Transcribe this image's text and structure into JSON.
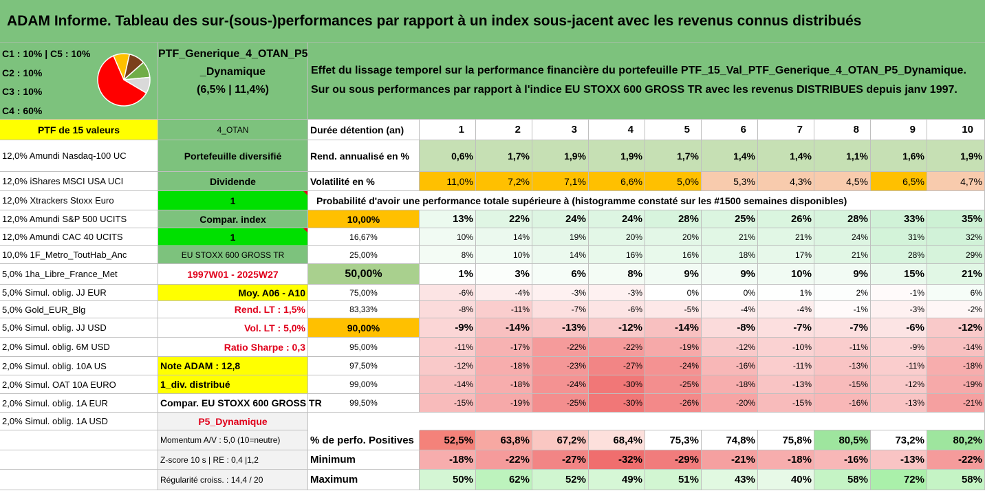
{
  "title": "ADAM Informe. Tableau des sur-(sous-)performances par rapport à un index sous-jacent avec les revenus connus distribués",
  "legend": {
    "lines": [
      "C1 : 10% | C5 : 10%",
      "C2 : 10%",
      "C3 : 10%",
      "C4 : 60%"
    ],
    "slices": [
      {
        "label": "C1",
        "pct": 10,
        "color": "#ffc000"
      },
      {
        "label": "C5",
        "pct": 10,
        "color": "#7b3f1a"
      },
      {
        "label": "C2",
        "pct": 10,
        "color": "#70ad47"
      },
      {
        "label": "C3",
        "pct": 10,
        "color": "#d9d9d9"
      },
      {
        "label": "C4",
        "pct": 60,
        "color": "#ff0000"
      }
    ]
  },
  "portfolio": {
    "name_line1": "PTF_Generique_4_OTAN_P5",
    "name_line2": "_Dynamique",
    "name_line3": "(6,5% | 11,4%)"
  },
  "description": "Effet du lissage temporel sur la performance financière du portefeuille PTF_15_Val_PTF_Generique_4_OTAN_P5_Dynamique. Sur ou sous performances par rapport à l'indice EU STOXX 600 GROSS TR avec les revenus DISTRIBUES depuis janv 1997.",
  "holdings_header": "PTF de 15 valeurs",
  "holdings": [
    "12,0% Amundi Nasdaq-100 UC",
    "12,0% iShares MSCI USA UCI",
    "12,0% Xtrackers Stoxx Euro",
    "12,0% Amundi S&P 500 UCITS",
    "12,0% Amundi CAC 40 UCITS",
    "10,0% 1F_Metro_ToutHab_Anc",
    "5,0% 1ha_Libre_France_Met",
    "5,0% Simul. oblig. JJ EUR",
    "5,0% Gold_EUR_Blg",
    "5,0% Simul. oblig. JJ USD",
    "2,0% Simul. oblig. 6M USD",
    "2,0% Simul. oblig. 10A US",
    "2,0% Simul. OAT 10A EURO",
    "2,0% Simul. oblig. 1A EUR",
    "2,0% Simul. oblig. 1A USD"
  ],
  "params": {
    "otan": "4_OTAN",
    "diversifie": "Portefeuille diversifié",
    "dividende": "Dividende",
    "val1": "1",
    "compar_index": "Compar. index",
    "val2": "1",
    "index_name": "EU STOXX 600 GROSS TR",
    "period": "1997W01 - 2025W27",
    "moy": "Moy. A06 - A10",
    "rend_lt": "Rend. LT : 1,5%",
    "vol_lt": "Vol. LT : 5,0%",
    "sharpe": "Ratio Sharpe : 0,3",
    "note": "Note ADAM : 12,8",
    "div": "1_div. distribué",
    "compar_eu": "Compar. EU STOXX 600 GROSS TR",
    "profile": "P5_Dynamique",
    "momentum": "Momentum A/V : 5,0 (10=neutre)",
    "zscore": "Z-score 10 s | RE : 0,4 |1,2",
    "regularite": "Régularité croiss. : 14,4 / 20"
  },
  "table": {
    "duration_label": "Durée détention (an)",
    "years": [
      "1",
      "2",
      "3",
      "4",
      "5",
      "6",
      "7",
      "8",
      "9",
      "10"
    ],
    "rend_label": "Rend. annualisé en %",
    "rend": [
      "0,6%",
      "1,7%",
      "1,9%",
      "1,9%",
      "1,7%",
      "1,4%",
      "1,4%",
      "1,1%",
      "1,6%",
      "1,9%"
    ],
    "vol_label": "Volatilité en %",
    "vol": [
      "11,0%",
      "7,2%",
      "7,1%",
      "6,6%",
      "5,0%",
      "5,3%",
      "4,3%",
      "4,5%",
      "6,5%",
      "4,7%"
    ],
    "prob_label": "Probabilité d'avoir une performance totale supérieure à (histogramme constaté sur les #1500 semaines disponibles)",
    "quantiles": [
      {
        "p": "10,00%",
        "values": [
          "13%",
          "22%",
          "24%",
          "24%",
          "28%",
          "25%",
          "26%",
          "28%",
          "33%",
          "35%"
        ]
      },
      {
        "p": "16,67%",
        "values": [
          "10%",
          "14%",
          "19%",
          "20%",
          "20%",
          "21%",
          "21%",
          "24%",
          "31%",
          "32%"
        ]
      },
      {
        "p": "25,00%",
        "values": [
          "8%",
          "10%",
          "14%",
          "16%",
          "16%",
          "18%",
          "17%",
          "21%",
          "28%",
          "29%"
        ]
      },
      {
        "p": "50,00%",
        "values": [
          "1%",
          "3%",
          "6%",
          "8%",
          "9%",
          "9%",
          "10%",
          "9%",
          "15%",
          "21%"
        ]
      },
      {
        "p": "75,00%",
        "values": [
          "-6%",
          "-4%",
          "-3%",
          "-3%",
          "0%",
          "0%",
          "1%",
          "2%",
          "-1%",
          "6%"
        ]
      },
      {
        "p": "83,33%",
        "values": [
          "-8%",
          "-11%",
          "-7%",
          "-6%",
          "-5%",
          "-4%",
          "-4%",
          "-1%",
          "-3%",
          "-2%"
        ]
      },
      {
        "p": "90,00%",
        "values": [
          "-9%",
          "-14%",
          "-13%",
          "-12%",
          "-14%",
          "-8%",
          "-7%",
          "-7%",
          "-6%",
          "-12%"
        ]
      },
      {
        "p": "95,00%",
        "values": [
          "-11%",
          "-17%",
          "-22%",
          "-22%",
          "-19%",
          "-12%",
          "-10%",
          "-11%",
          "-9%",
          "-14%"
        ]
      },
      {
        "p": "97,50%",
        "values": [
          "-12%",
          "-18%",
          "-23%",
          "-27%",
          "-24%",
          "-16%",
          "-11%",
          "-13%",
          "-11%",
          "-18%"
        ]
      },
      {
        "p": "99,00%",
        "values": [
          "-14%",
          "-18%",
          "-24%",
          "-30%",
          "-25%",
          "-18%",
          "-13%",
          "-15%",
          "-12%",
          "-19%"
        ]
      },
      {
        "p": "99,50%",
        "values": [
          "-15%",
          "-19%",
          "-25%",
          "-30%",
          "-26%",
          "-20%",
          "-15%",
          "-16%",
          "-13%",
          "-21%"
        ]
      }
    ],
    "positive_label": "% de perfo. Positives",
    "positive": [
      "52,5%",
      "63,8%",
      "67,2%",
      "68,4%",
      "75,3%",
      "74,8%",
      "75,8%",
      "80,5%",
      "73,2%",
      "80,2%"
    ],
    "min_label": "Minimum",
    "min": [
      "-18%",
      "-22%",
      "-27%",
      "-32%",
      "-29%",
      "-21%",
      "-18%",
      "-16%",
      "-13%",
      "-22%"
    ],
    "max_label": "Maximum",
    "max": [
      "50%",
      "62%",
      "52%",
      "49%",
      "51%",
      "43%",
      "40%",
      "58%",
      "72%",
      "58%"
    ]
  }
}
